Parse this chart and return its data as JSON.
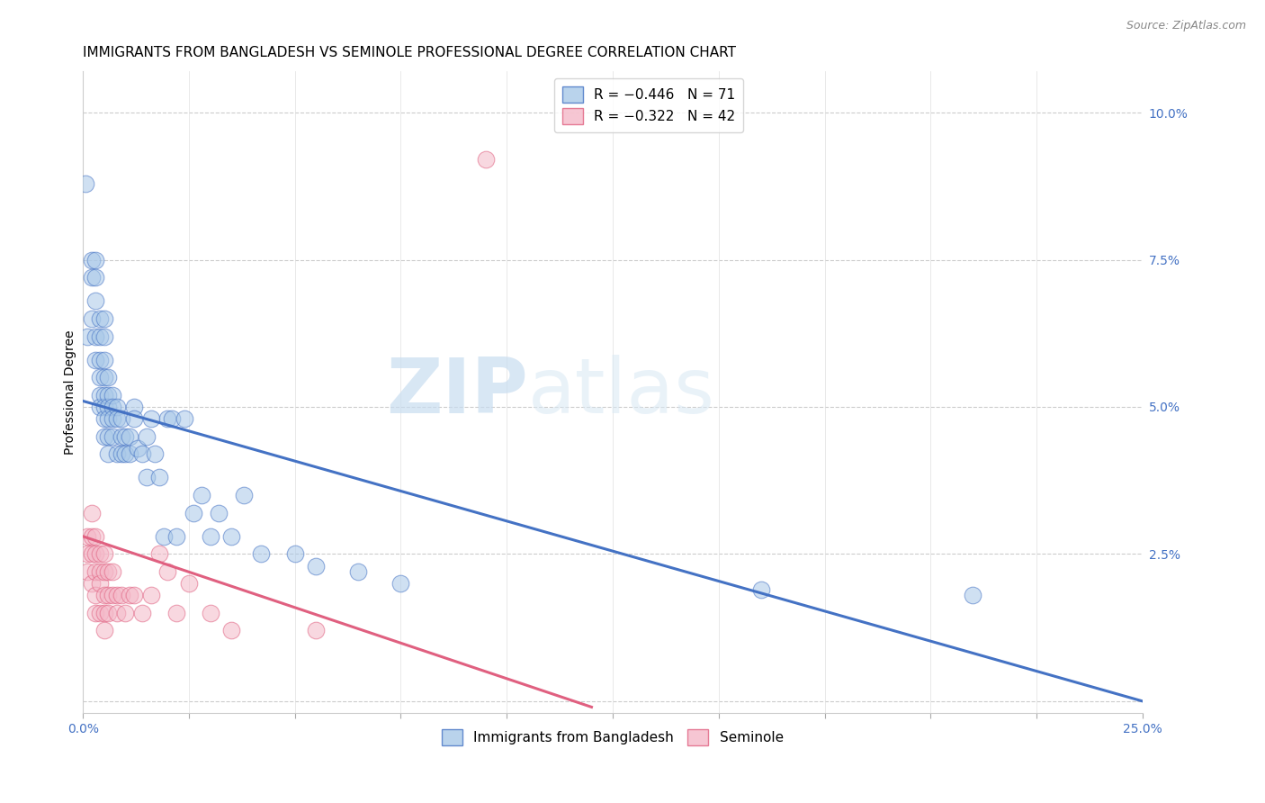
{
  "title": "IMMIGRANTS FROM BANGLADESH VS SEMINOLE PROFESSIONAL DEGREE CORRELATION CHART",
  "source": "Source: ZipAtlas.com",
  "ylabel": "Professional Degree",
  "right_yticks": [
    0.0,
    0.025,
    0.05,
    0.075,
    0.1
  ],
  "right_yticklabels": [
    "",
    "2.5%",
    "5.0%",
    "7.5%",
    "10.0%"
  ],
  "xlim": [
    0.0,
    0.25
  ],
  "ylim": [
    -0.002,
    0.107
  ],
  "watermark_zip": "ZIP",
  "watermark_atlas": "atlas",
  "legend1_label": "R = −0.446   N = 71",
  "legend2_label": "R = −0.322   N = 42",
  "legend1_color": "#a8c8e8",
  "legend2_color": "#f4b8c8",
  "series1_color": "#a8c8e8",
  "series2_color": "#f4b8c8",
  "line1_color": "#4472c4",
  "line2_color": "#e06080",
  "title_fontsize": 11,
  "tick_color": "#4472c4",
  "series1_x": [
    0.0005,
    0.001,
    0.002,
    0.002,
    0.002,
    0.003,
    0.003,
    0.003,
    0.003,
    0.003,
    0.004,
    0.004,
    0.004,
    0.004,
    0.004,
    0.004,
    0.005,
    0.005,
    0.005,
    0.005,
    0.005,
    0.005,
    0.005,
    0.005,
    0.006,
    0.006,
    0.006,
    0.006,
    0.006,
    0.006,
    0.007,
    0.007,
    0.007,
    0.007,
    0.008,
    0.008,
    0.008,
    0.009,
    0.009,
    0.009,
    0.01,
    0.01,
    0.011,
    0.011,
    0.012,
    0.012,
    0.013,
    0.014,
    0.015,
    0.015,
    0.016,
    0.017,
    0.018,
    0.019,
    0.02,
    0.021,
    0.022,
    0.024,
    0.026,
    0.028,
    0.03,
    0.032,
    0.035,
    0.038,
    0.042,
    0.05,
    0.055,
    0.065,
    0.075,
    0.16,
    0.21
  ],
  "series1_y": [
    0.088,
    0.062,
    0.075,
    0.072,
    0.065,
    0.075,
    0.072,
    0.068,
    0.062,
    0.058,
    0.065,
    0.062,
    0.058,
    0.055,
    0.052,
    0.05,
    0.065,
    0.062,
    0.058,
    0.055,
    0.052,
    0.05,
    0.048,
    0.045,
    0.055,
    0.052,
    0.05,
    0.048,
    0.045,
    0.042,
    0.052,
    0.05,
    0.048,
    0.045,
    0.05,
    0.048,
    0.042,
    0.048,
    0.045,
    0.042,
    0.045,
    0.042,
    0.045,
    0.042,
    0.05,
    0.048,
    0.043,
    0.042,
    0.045,
    0.038,
    0.048,
    0.042,
    0.038,
    0.028,
    0.048,
    0.048,
    0.028,
    0.048,
    0.032,
    0.035,
    0.028,
    0.032,
    0.028,
    0.035,
    0.025,
    0.025,
    0.023,
    0.022,
    0.02,
    0.019,
    0.018
  ],
  "series2_x": [
    0.001,
    0.001,
    0.001,
    0.002,
    0.002,
    0.002,
    0.002,
    0.003,
    0.003,
    0.003,
    0.003,
    0.003,
    0.004,
    0.004,
    0.004,
    0.004,
    0.005,
    0.005,
    0.005,
    0.005,
    0.005,
    0.006,
    0.006,
    0.006,
    0.007,
    0.007,
    0.008,
    0.008,
    0.009,
    0.01,
    0.011,
    0.012,
    0.014,
    0.016,
    0.018,
    0.02,
    0.022,
    0.025,
    0.03,
    0.035,
    0.055,
    0.095
  ],
  "series2_y": [
    0.028,
    0.025,
    0.022,
    0.032,
    0.028,
    0.025,
    0.02,
    0.028,
    0.025,
    0.022,
    0.018,
    0.015,
    0.025,
    0.022,
    0.02,
    0.015,
    0.025,
    0.022,
    0.018,
    0.015,
    0.012,
    0.022,
    0.018,
    0.015,
    0.022,
    0.018,
    0.018,
    0.015,
    0.018,
    0.015,
    0.018,
    0.018,
    0.015,
    0.018,
    0.025,
    0.022,
    0.015,
    0.02,
    0.015,
    0.012,
    0.012,
    0.092
  ],
  "line1_x_start": 0.0,
  "line1_x_end": 0.25,
  "line1_y_start": 0.051,
  "line1_y_end": 0.0,
  "line2_x_start": 0.0,
  "line2_x_end": 0.12,
  "line2_y_start": 0.028,
  "line2_y_end": -0.001
}
